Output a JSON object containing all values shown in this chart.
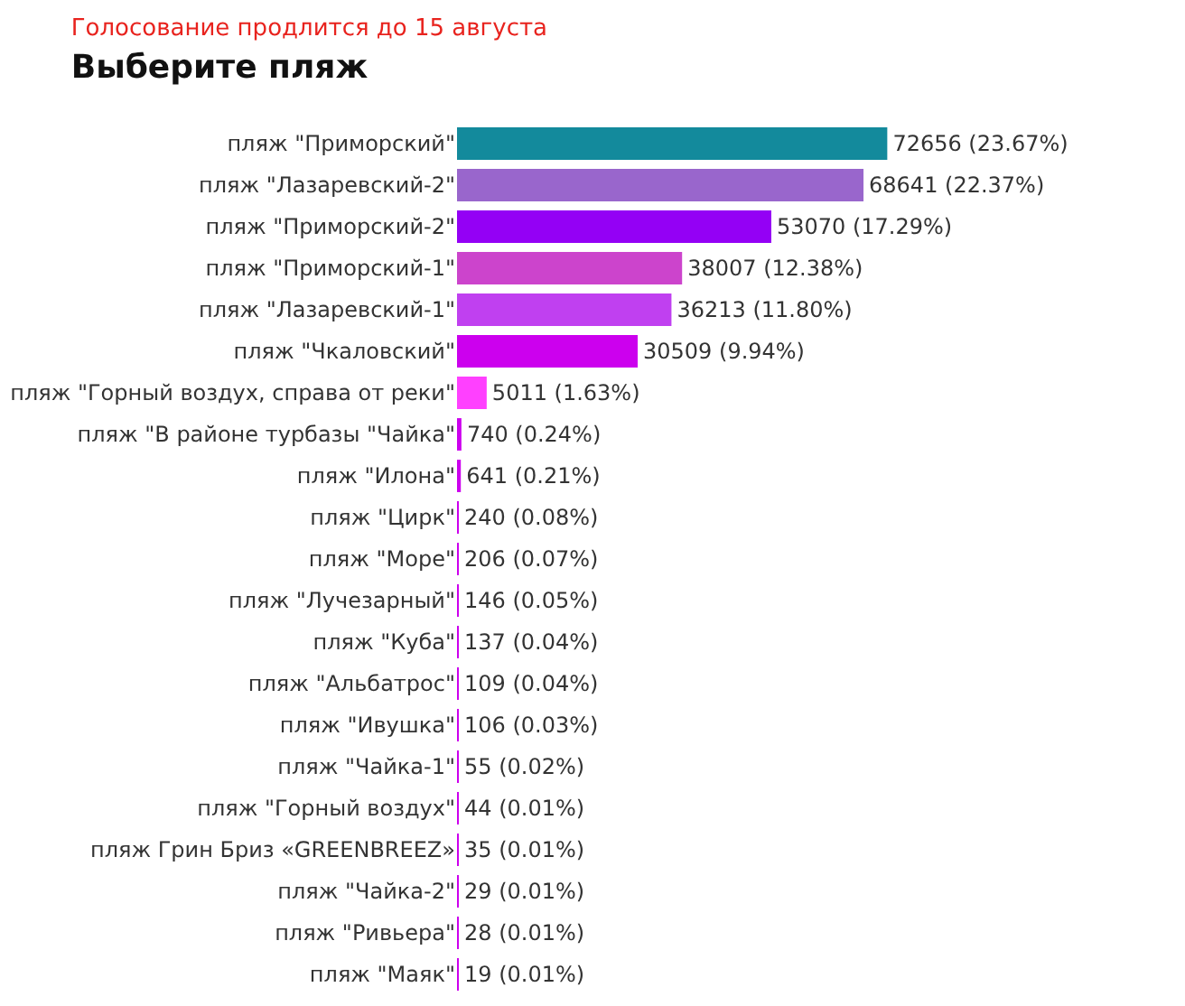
{
  "chart_data": {
    "type": "bar",
    "orientation": "horizontal",
    "title": "Выберите пляж",
    "subtitle": "Голосование продлится до 15 августа",
    "categories": [
      "пляж \"Приморский\"",
      "пляж \"Лазаревский-2\"",
      "пляж \"Приморский-2\"",
      "пляж \"Приморский-1\"",
      "пляж \"Лазаревский-1\"",
      "пляж \"Чкаловский\"",
      "пляж \"Горный воздух, справа от реки\"",
      "пляж \"В районе турбазы \"Чайка\"",
      "пляж \"Илона\"",
      "пляж \"Цирк\"",
      "пляж \"Море\"",
      "пляж \"Лучезарный\"",
      "пляж \"Куба\"",
      "пляж \"Альбатрос\"",
      "пляж \"Ивушка\"",
      "пляж \"Чайка-1\"",
      "пляж \"Горный воздух\"",
      "пляж Грин Бриз «GREENBREEZ»",
      "пляж \"Чайка-2\"",
      "пляж \"Ривьера\"",
      "пляж \"Маяк\""
    ],
    "values": [
      72656,
      68641,
      53070,
      38007,
      36213,
      30509,
      5011,
      740,
      641,
      240,
      206,
      146,
      137,
      109,
      106,
      55,
      44,
      35,
      29,
      28,
      19
    ],
    "value_labels": [
      "72656 (23.67%)",
      "68641 (22.37%)",
      "53070 (17.29%)",
      "38007 (12.38%)",
      "36213 (11.80%)",
      "30509 (9.94%)",
      "5011 (1.63%)",
      "740 (0.24%)",
      "641 (0.21%)",
      "240 (0.08%)",
      "206 (0.07%)",
      "146 (0.05%)",
      "137 (0.04%)",
      "109 (0.04%)",
      "106 (0.03%)",
      "55 (0.02%)",
      "44 (0.01%)",
      "35 (0.01%)",
      "29 (0.01%)",
      "28 (0.01%)",
      "19 (0.01%)"
    ],
    "colors": [
      "#138a9c",
      "#9966cc",
      "#9400f5",
      "#cc44cc",
      "#c040f0",
      "#cc00ee",
      "#ff40ff",
      "#cc00ee",
      "#cc00ee",
      "#cc00ee",
      "#cc00ee",
      "#cc00ee",
      "#cc00ee",
      "#cc00ee",
      "#cc00ee",
      "#cc00ee",
      "#cc00ee",
      "#cc00ee",
      "#cc00ee",
      "#cc00ee",
      "#cc00ee"
    ]
  }
}
